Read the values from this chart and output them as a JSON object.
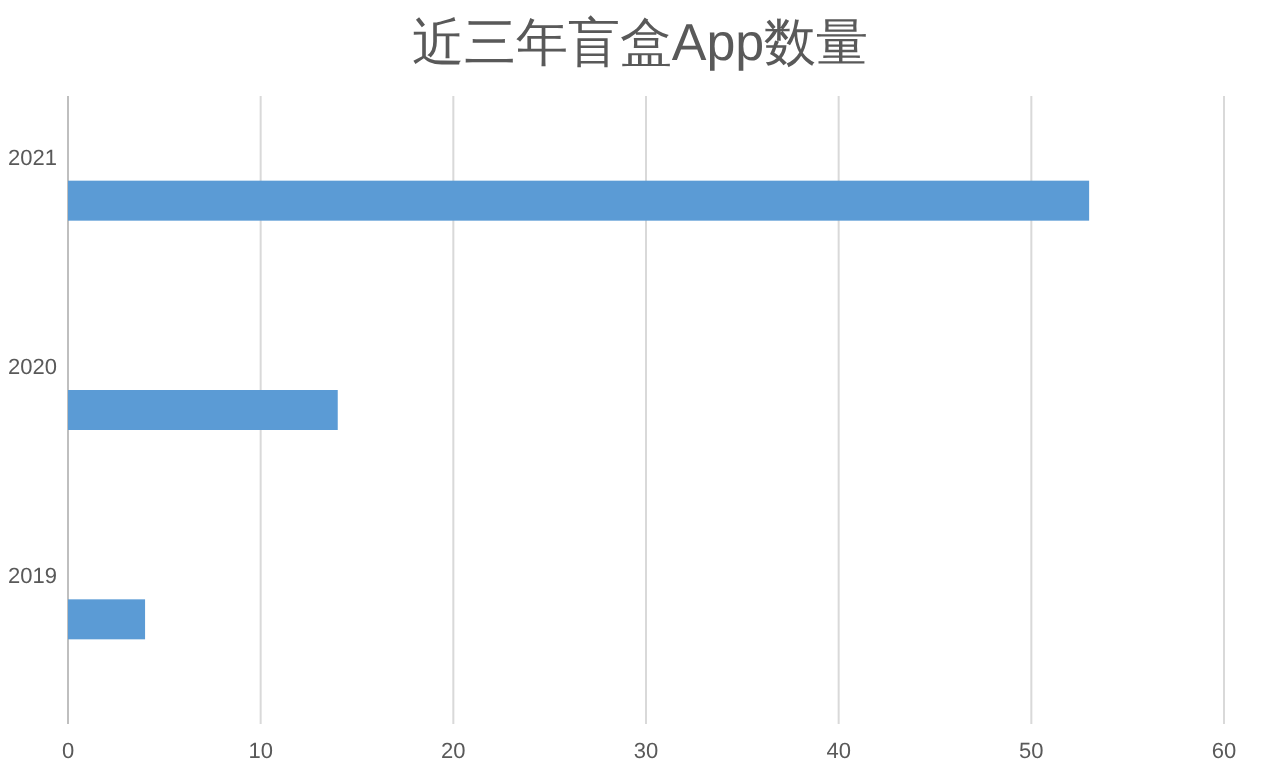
{
  "chart_data": {
    "type": "bar",
    "orientation": "horizontal",
    "title": "近三年盲盒App数量",
    "categories": [
      "2021",
      "2020",
      "2019"
    ],
    "values": [
      53,
      14,
      4
    ],
    "color": "#5b9bd5",
    "xlim": [
      0,
      60
    ],
    "xticks": [
      0,
      10,
      20,
      30,
      40,
      50,
      60
    ],
    "grid": "x"
  }
}
